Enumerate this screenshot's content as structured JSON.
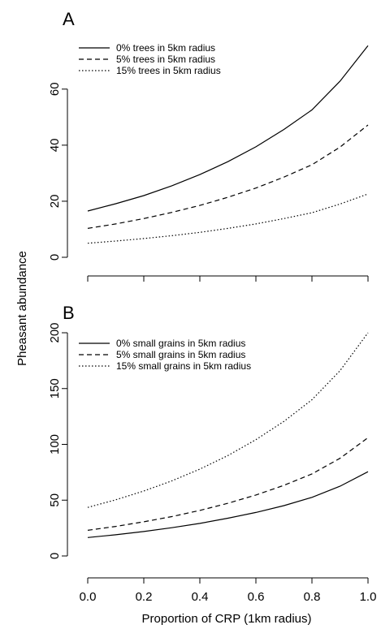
{
  "chart_data": [
    {
      "type": "line",
      "panel_label": "A",
      "ylabel": "",
      "xlabel": "",
      "xlim": [
        0,
        1
      ],
      "ylim": [
        0,
        75
      ],
      "x_ticks": [
        0.0,
        0.2,
        0.4,
        0.6,
        0.8,
        1.0
      ],
      "y_ticks": [
        0,
        20,
        40,
        60
      ],
      "y_tick_labels": [
        "0",
        "20",
        "40",
        "60"
      ],
      "show_x_tick_labels": false,
      "legend_position": "top-left",
      "line_color": "#000000",
      "series": [
        {
          "name": "0% trees in 5km radius",
          "style": "solid",
          "x": [
            0,
            0.1,
            0.2,
            0.3,
            0.4,
            0.5,
            0.6,
            0.7,
            0.8,
            0.9,
            1.0
          ],
          "y": [
            16.5,
            19.1,
            22.0,
            25.5,
            29.5,
            34.1,
            39.4,
            45.6,
            52.6,
            62.8,
            75.5
          ]
        },
        {
          "name": "5% trees in 5km radius",
          "style": "dashed",
          "x": [
            0,
            0.1,
            0.2,
            0.3,
            0.4,
            0.5,
            0.6,
            0.7,
            0.8,
            0.9,
            1.0
          ],
          "y": [
            10.3,
            11.9,
            13.8,
            16.0,
            18.5,
            21.4,
            24.7,
            28.6,
            33.0,
            39.3,
            47.2
          ]
        },
        {
          "name": "15% trees in 5km radius",
          "style": "dotted",
          "x": [
            0,
            0.1,
            0.2,
            0.3,
            0.4,
            0.5,
            0.6,
            0.7,
            0.8,
            0.9,
            1.0
          ],
          "y": [
            5.0,
            5.8,
            6.7,
            7.7,
            8.9,
            10.3,
            11.9,
            13.8,
            15.9,
            19.0,
            22.6
          ]
        }
      ]
    },
    {
      "type": "line",
      "panel_label": "B",
      "ylabel": "",
      "xlabel": "Proportion of CRP (1km radius)",
      "xlim": [
        0,
        1
      ],
      "ylim": [
        0,
        200
      ],
      "x_ticks": [
        0.0,
        0.2,
        0.4,
        0.6,
        0.8,
        1.0
      ],
      "x_tick_labels": [
        "0.0",
        "0.2",
        "0.4",
        "0.6",
        "0.8",
        "1.0"
      ],
      "y_ticks": [
        0,
        50,
        100,
        150,
        200
      ],
      "y_tick_labels": [
        "0",
        "50",
        "100",
        "150",
        "200"
      ],
      "show_x_tick_labels": true,
      "legend_position": "top-left",
      "line_color": "#000000",
      "series": [
        {
          "name": "0% small grains in 5km radius",
          "style": "solid",
          "x": [
            0,
            0.1,
            0.2,
            0.3,
            0.4,
            0.5,
            0.6,
            0.7,
            0.8,
            0.9,
            1.0
          ],
          "y": [
            16.5,
            19.0,
            21.9,
            25.3,
            29.2,
            33.8,
            39.0,
            45.1,
            52.5,
            62.5,
            75.5
          ]
        },
        {
          "name": "5% small grains in 5km radius",
          "style": "dashed",
          "x": [
            0,
            0.1,
            0.2,
            0.3,
            0.4,
            0.5,
            0.6,
            0.7,
            0.8,
            0.9,
            1.0
          ],
          "y": [
            23.0,
            26.5,
            30.6,
            35.3,
            40.8,
            47.2,
            54.6,
            63.3,
            73.5,
            87.5,
            106.0
          ]
        },
        {
          "name": "15% small grains in 5km radius",
          "style": "dotted",
          "x": [
            0,
            0.1,
            0.2,
            0.3,
            0.4,
            0.5,
            0.6,
            0.7,
            0.8,
            0.9,
            1.0
          ],
          "y": [
            43.5,
            50.3,
            58.2,
            67.3,
            77.8,
            90.0,
            104.2,
            120.6,
            140.0,
            166.0,
            200.0
          ]
        }
      ]
    }
  ],
  "shared_ylabel": "Pheasant abundance"
}
